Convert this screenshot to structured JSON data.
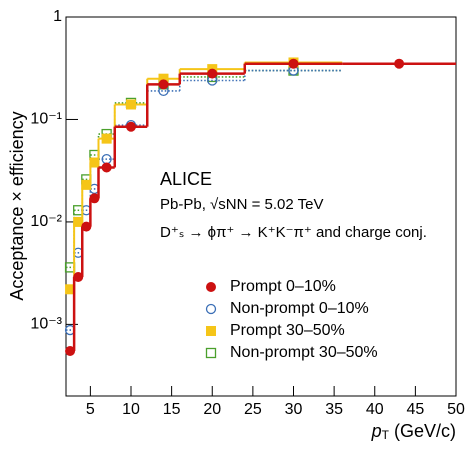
{
  "chart_data": {
    "type": "step",
    "xlabel": {
      "main": "p",
      "sub": "T",
      "rest": " (GeV/c)"
    },
    "ylabel": "Acceptance × efficiency",
    "annotations": [
      "ALICE",
      "Pb-Pb, √sNN = 5.02 TeV",
      "D⁺ₛ → ϕπ⁺ → K⁺K⁻π⁺ and charge conj."
    ],
    "xlim": [
      2,
      50
    ],
    "xticks": [
      5,
      10,
      15,
      20,
      25,
      30,
      35,
      40,
      45,
      50
    ],
    "ylim": [
      0.0002,
      1
    ],
    "yscale": "log",
    "yticks": [
      {
        "value": 0.001,
        "label": "10⁻³"
      },
      {
        "value": 0.01,
        "label": "10⁻²"
      },
      {
        "value": 0.1,
        "label": "10⁻¹"
      },
      {
        "value": 1,
        "label": "1"
      }
    ],
    "series": [
      {
        "name": "Non-prompt 30–50%",
        "color": "#4aa02c",
        "marker": "square",
        "filled": false,
        "linestyle": "dotted",
        "bins": [
          2,
          3,
          4,
          5,
          6,
          8,
          12,
          16,
          24,
          36
        ],
        "values": [
          0.0036,
          0.013,
          0.026,
          0.045,
          0.072,
          0.145,
          0.22,
          0.26,
          0.3
        ]
      },
      {
        "name": "Non-prompt 0–10%",
        "color": "#3b6fb6",
        "marker": "circle",
        "filled": false,
        "linestyle": "dotted",
        "bins": [
          2,
          3,
          4,
          5,
          6,
          8,
          12,
          16,
          24,
          36
        ],
        "values": [
          0.00088,
          0.005,
          0.013,
          0.021,
          0.041,
          0.088,
          0.19,
          0.24,
          0.3
        ]
      },
      {
        "name": "Prompt 30–50%",
        "color": "#f5c518",
        "marker": "square",
        "filled": true,
        "linestyle": "solid",
        "bins": [
          2,
          3,
          4,
          5,
          6,
          8,
          12,
          16,
          24,
          36
        ],
        "values": [
          0.0022,
          0.01,
          0.023,
          0.038,
          0.065,
          0.14,
          0.25,
          0.31,
          0.36
        ]
      },
      {
        "name": "Prompt 0–10%",
        "color": "#cc1111",
        "marker": "circle",
        "filled": true,
        "linestyle": "solid",
        "bins": [
          2,
          3,
          4,
          5,
          6,
          8,
          12,
          16,
          24,
          36,
          50
        ],
        "values": [
          0.00055,
          0.0029,
          0.009,
          0.017,
          0.034,
          0.085,
          0.22,
          0.28,
          0.35,
          0.35
        ]
      }
    ],
    "legend_order": [
      3,
      1,
      2,
      0
    ]
  }
}
